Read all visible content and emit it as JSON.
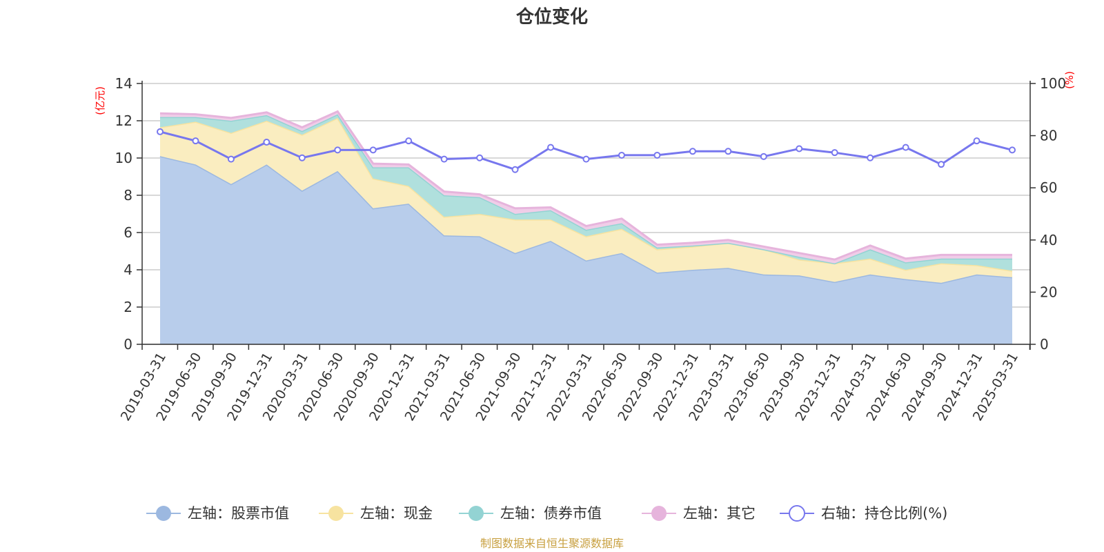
{
  "chart_data": {
    "type": "area",
    "title": "仓位变化",
    "left_unit": "(亿元)",
    "right_unit": "(%)",
    "ylim_left": [
      0,
      14
    ],
    "yticks_left": [
      "0",
      "2",
      "4",
      "6",
      "8",
      "10",
      "12",
      "14"
    ],
    "ylim_right": [
      0,
      100
    ],
    "yticks_right": [
      "0",
      "20",
      "40",
      "60",
      "80",
      "100"
    ],
    "grid": true,
    "legend_position": "bottom",
    "categories": [
      "2019-03-31",
      "2019-06-30",
      "2019-09-30",
      "2019-12-31",
      "2020-03-31",
      "2020-06-30",
      "2020-09-30",
      "2020-12-31",
      "2021-03-31",
      "2021-06-30",
      "2021-09-30",
      "2021-12-31",
      "2022-03-31",
      "2022-06-30",
      "2022-09-30",
      "2022-12-31",
      "2023-03-31",
      "2023-06-30",
      "2023-09-30",
      "2023-12-31",
      "2024-03-31",
      "2024-06-30",
      "2024-09-30",
      "2024-12-31",
      "2025-03-31"
    ],
    "series": [
      {
        "name": "左轴：股票市值",
        "axis": "left",
        "kind": "stacked-area",
        "color": "#9cb8e0",
        "fill": "#b8cdeb",
        "values": [
          10.1,
          9.65,
          8.6,
          9.65,
          8.25,
          9.3,
          7.3,
          7.55,
          5.85,
          5.8,
          4.9,
          5.55,
          4.5,
          4.9,
          3.85,
          4.0,
          4.1,
          3.75,
          3.7,
          3.35,
          3.75,
          3.5,
          3.3,
          3.75,
          3.6
        ]
      },
      {
        "name": "左轴：现金",
        "axis": "left",
        "kind": "stacked-area",
        "color": "#f7e3a0",
        "fill": "#faedc0",
        "values": [
          1.55,
          2.3,
          2.75,
          2.35,
          3.0,
          2.85,
          1.6,
          0.95,
          1.0,
          1.2,
          1.8,
          1.15,
          1.3,
          1.3,
          1.25,
          1.25,
          1.35,
          1.35,
          0.85,
          1.0,
          0.85,
          0.5,
          1.05,
          0.5,
          0.35
        ]
      },
      {
        "name": "左轴：债券市值",
        "axis": "left",
        "kind": "stacked-area",
        "color": "#93d3d3",
        "fill": "#b0e0dd",
        "values": [
          0.55,
          0.25,
          0.65,
          0.3,
          0.2,
          0.2,
          0.6,
          1.0,
          1.15,
          0.9,
          0.3,
          0.5,
          0.35,
          0.3,
          0.1,
          0.05,
          0.0,
          0.0,
          0.15,
          0.0,
          0.5,
          0.4,
          0.25,
          0.35,
          0.65
        ]
      },
      {
        "name": "左轴：其它",
        "axis": "left",
        "kind": "stacked-area",
        "color": "#e6b4dc",
        "fill": "#f0cde8",
        "values": [
          0.2,
          0.15,
          0.15,
          0.15,
          0.2,
          0.15,
          0.2,
          0.15,
          0.2,
          0.15,
          0.3,
          0.15,
          0.2,
          0.25,
          0.15,
          0.15,
          0.15,
          0.15,
          0.2,
          0.2,
          0.2,
          0.2,
          0.2,
          0.2,
          0.2
        ]
      },
      {
        "name": "右轴：持仓比例(%)",
        "axis": "right",
        "kind": "line",
        "color": "#7777ee",
        "values": [
          81.5,
          78.0,
          71.0,
          77.5,
          71.5,
          74.5,
          74.5,
          78.0,
          71.0,
          71.5,
          67.0,
          75.5,
          71.0,
          72.5,
          72.5,
          74.0,
          74.0,
          72.0,
          75.0,
          73.5,
          71.5,
          75.5,
          69.0,
          78.0,
          74.5
        ]
      }
    ]
  },
  "footer": {
    "source": "制图数据来自恒生聚源数据库"
  }
}
